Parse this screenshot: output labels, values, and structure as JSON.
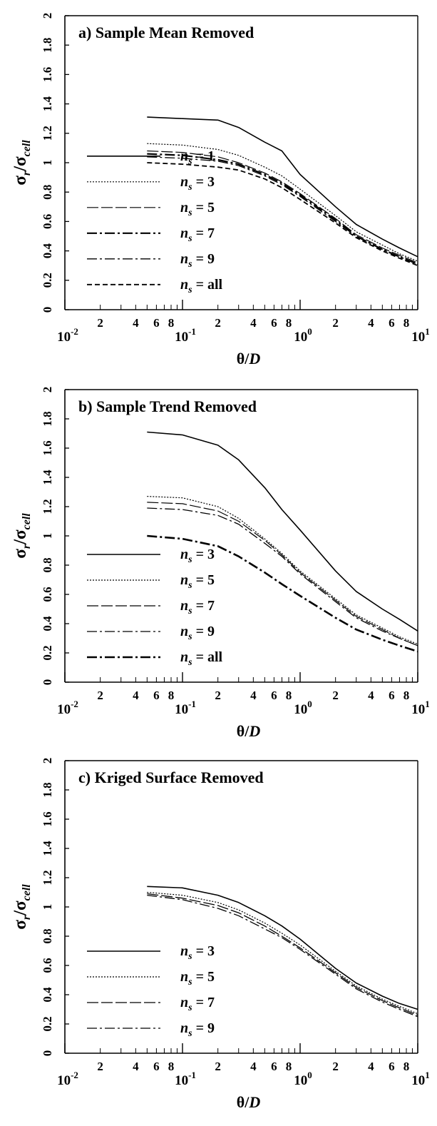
{
  "chart_data": [
    {
      "type": "line",
      "title": "a) Sample Mean Removed",
      "xlabel": "θ/D",
      "ylabel": "σr/σcell",
      "ylabel_main": "σ",
      "ylabel_sub1": "r",
      "ylabel_sep": "/σ",
      "ylabel_sub2": "cell",
      "xlabel_main": "θ/",
      "xlabel_var": "D",
      "xscale": "log",
      "xlim": [
        0.01,
        10
      ],
      "ylim": [
        0,
        2
      ],
      "yticks": [
        "0",
        "0.2",
        "0.4",
        "0.6",
        "0.8",
        "1",
        "1.2",
        "1.4",
        "1.6",
        "1.8",
        "2"
      ],
      "xticks_major": [
        "10-2",
        "10-1",
        "100",
        "101"
      ],
      "xticks_minor_labels": [
        "2",
        "4",
        "6",
        "8"
      ],
      "legend_position": "lower-left",
      "x": [
        0.05,
        0.1,
        0.2,
        0.3,
        0.5,
        0.7,
        1,
        2,
        3,
        5,
        7,
        10
      ],
      "series": [
        {
          "name": "ns = 1",
          "legend_var": "n",
          "legend_sub": "s",
          "legend_val": "= 1",
          "style": "solid",
          "width": 1.6,
          "values": [
            1.31,
            1.3,
            1.29,
            1.24,
            1.14,
            1.08,
            0.92,
            0.7,
            0.58,
            0.48,
            0.42,
            0.36
          ]
        },
        {
          "name": "ns = 3",
          "legend_var": "n",
          "legend_sub": "s",
          "legend_val": "= 3",
          "style": "dotted",
          "width": 1.2,
          "values": [
            1.13,
            1.12,
            1.09,
            1.05,
            0.97,
            0.91,
            0.82,
            0.64,
            0.53,
            0.44,
            0.38,
            0.33
          ]
        },
        {
          "name": "ns = 5",
          "legend_var": "n",
          "legend_sub": "s",
          "legend_val": "= 5",
          "style": "longdash",
          "width": 1.2,
          "values": [
            1.08,
            1.07,
            1.04,
            1.0,
            0.93,
            0.87,
            0.79,
            0.62,
            0.51,
            0.42,
            0.37,
            0.32
          ]
        },
        {
          "name": "ns = 7",
          "legend_var": "n",
          "legend_sub": "s",
          "legend_val": "= 7",
          "style": "dashdot",
          "width": 2.2,
          "values": [
            1.06,
            1.05,
            1.02,
            0.99,
            0.92,
            0.86,
            0.78,
            0.61,
            0.5,
            0.41,
            0.36,
            0.31
          ]
        },
        {
          "name": "ns = 9",
          "legend_var": "n",
          "legend_sub": "s",
          "legend_val": "= 9",
          "style": "dashdot",
          "width": 1.3,
          "values": [
            1.04,
            1.03,
            1.01,
            0.98,
            0.91,
            0.85,
            0.77,
            0.6,
            0.5,
            0.41,
            0.36,
            0.31
          ]
        },
        {
          "name": "ns = all",
          "legend_var": "n",
          "legend_sub": "s",
          "legend_val": "= all",
          "style": "shortdash",
          "width": 1.8,
          "values": [
            1.0,
            0.99,
            0.97,
            0.95,
            0.89,
            0.83,
            0.75,
            0.59,
            0.49,
            0.4,
            0.35,
            0.3
          ]
        }
      ]
    },
    {
      "type": "line",
      "title": "b) Sample Trend Removed",
      "xlabel": "θ/D",
      "ylabel": "σr/σcell",
      "ylabel_main": "σ",
      "ylabel_sub1": "r",
      "ylabel_sep": "/σ",
      "ylabel_sub2": "cell",
      "xlabel_main": "θ/",
      "xlabel_var": "D",
      "xscale": "log",
      "xlim": [
        0.01,
        10
      ],
      "ylim": [
        0,
        2
      ],
      "yticks": [
        "0",
        "0.2",
        "0.4",
        "0.6",
        "0.8",
        "1",
        "1.2",
        "1.4",
        "1.6",
        "1.8",
        "2"
      ],
      "xticks_major": [
        "10-2",
        "10-1",
        "100",
        "101"
      ],
      "xticks_minor_labels": [
        "2",
        "4",
        "6",
        "8"
      ],
      "legend_position": "lower-left",
      "x": [
        0.05,
        0.1,
        0.2,
        0.3,
        0.5,
        0.7,
        1,
        2,
        3,
        5,
        7,
        10
      ],
      "series": [
        {
          "name": "ns = 3",
          "legend_var": "n",
          "legend_sub": "s",
          "legend_val": "= 3",
          "style": "solid",
          "width": 1.6,
          "values": [
            1.71,
            1.69,
            1.62,
            1.52,
            1.33,
            1.18,
            1.04,
            0.76,
            0.62,
            0.5,
            0.43,
            0.35
          ]
        },
        {
          "name": "ns = 5",
          "legend_var": "n",
          "legend_sub": "s",
          "legend_val": "= 5",
          "style": "dotted",
          "width": 1.2,
          "values": [
            1.27,
            1.26,
            1.2,
            1.12,
            0.98,
            0.88,
            0.76,
            0.57,
            0.46,
            0.37,
            0.31,
            0.26
          ]
        },
        {
          "name": "ns = 7",
          "legend_var": "n",
          "legend_sub": "s",
          "legend_val": "= 7",
          "style": "longdash",
          "width": 1.2,
          "values": [
            1.23,
            1.22,
            1.17,
            1.1,
            0.97,
            0.87,
            0.75,
            0.56,
            0.45,
            0.36,
            0.3,
            0.25
          ]
        },
        {
          "name": "ns = 9",
          "legend_var": "n",
          "legend_sub": "s",
          "legend_val": "= 9",
          "style": "dashdot",
          "width": 1.3,
          "values": [
            1.19,
            1.18,
            1.14,
            1.08,
            0.95,
            0.86,
            0.74,
            0.55,
            0.44,
            0.35,
            0.3,
            0.25
          ]
        },
        {
          "name": "ns = all",
          "legend_var": "n",
          "legend_sub": "s",
          "legend_val": "= all",
          "style": "dashdot",
          "width": 2.6,
          "values": [
            1.0,
            0.98,
            0.93,
            0.86,
            0.75,
            0.67,
            0.59,
            0.44,
            0.36,
            0.29,
            0.25,
            0.21
          ]
        }
      ]
    },
    {
      "type": "line",
      "title": "c) Kriged Surface Removed",
      "xlabel": "θ/D",
      "ylabel": "σr/σcell",
      "ylabel_main": "σ",
      "ylabel_sub1": "r",
      "ylabel_sep": "/σ",
      "ylabel_sub2": "cell",
      "xlabel_main": "θ/",
      "xlabel_var": "D",
      "xscale": "log",
      "xlim": [
        0.01,
        10
      ],
      "ylim": [
        0,
        2
      ],
      "yticks": [
        "0",
        "0.2",
        "0.4",
        "0.6",
        "0.8",
        "1",
        "1.2",
        "1.4",
        "1.6",
        "1.8",
        "2"
      ],
      "xticks_major": [
        "10-2",
        "10-1",
        "100",
        "101"
      ],
      "xticks_minor_labels": [
        "2",
        "4",
        "6",
        "8"
      ],
      "legend_position": "lower-left",
      "x": [
        0.05,
        0.1,
        0.2,
        0.3,
        0.5,
        0.7,
        1,
        2,
        3,
        5,
        7,
        10
      ],
      "series": [
        {
          "name": "ns = 3",
          "legend_var": "n",
          "legend_sub": "s",
          "legend_val": "= 3",
          "style": "solid",
          "width": 1.6,
          "values": [
            1.14,
            1.13,
            1.08,
            1.03,
            0.94,
            0.87,
            0.78,
            0.58,
            0.48,
            0.39,
            0.34,
            0.3
          ]
        },
        {
          "name": "ns = 5",
          "legend_var": "n",
          "legend_sub": "s",
          "legend_val": "= 5",
          "style": "dotted",
          "width": 1.2,
          "values": [
            1.1,
            1.08,
            1.03,
            0.98,
            0.89,
            0.82,
            0.74,
            0.56,
            0.46,
            0.37,
            0.32,
            0.27
          ]
        },
        {
          "name": "ns = 7",
          "legend_var": "n",
          "legend_sub": "s",
          "legend_val": "= 7",
          "style": "longdash",
          "width": 1.3,
          "values": [
            1.09,
            1.06,
            1.01,
            0.96,
            0.87,
            0.8,
            0.72,
            0.55,
            0.45,
            0.36,
            0.31,
            0.26
          ]
        },
        {
          "name": "ns = 9",
          "legend_var": "n",
          "legend_sub": "s",
          "legend_val": "= 9",
          "style": "dashdot",
          "width": 1.3,
          "values": [
            1.08,
            1.05,
            0.99,
            0.94,
            0.85,
            0.79,
            0.71,
            0.54,
            0.44,
            0.35,
            0.3,
            0.25
          ]
        }
      ]
    }
  ]
}
